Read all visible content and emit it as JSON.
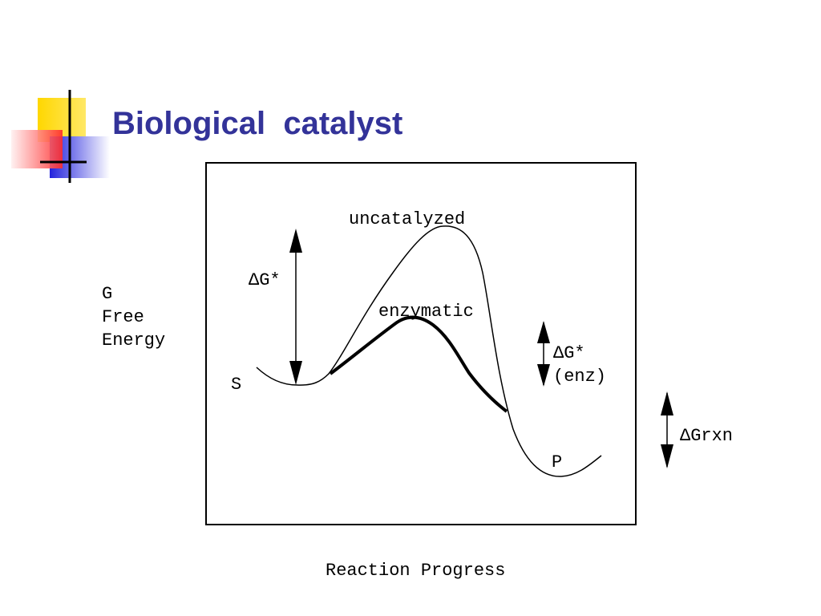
{
  "header": {
    "title": "Biological  catalyst"
  },
  "diagram": {
    "y_label": [
      "G",
      "Free",
      "Energy"
    ],
    "x_label": "Reaction Progress",
    "curves": [
      {
        "label": "uncatalyzed"
      },
      {
        "label": "enzymatic"
      }
    ],
    "states": [
      "S",
      "P"
    ],
    "annotations": [
      {
        "lines": [
          "ΔG*"
        ]
      },
      {
        "lines": [
          "ΔG*",
          "(enz)"
        ]
      },
      {
        "lines": [
          "ΔGrxn"
        ]
      }
    ]
  }
}
